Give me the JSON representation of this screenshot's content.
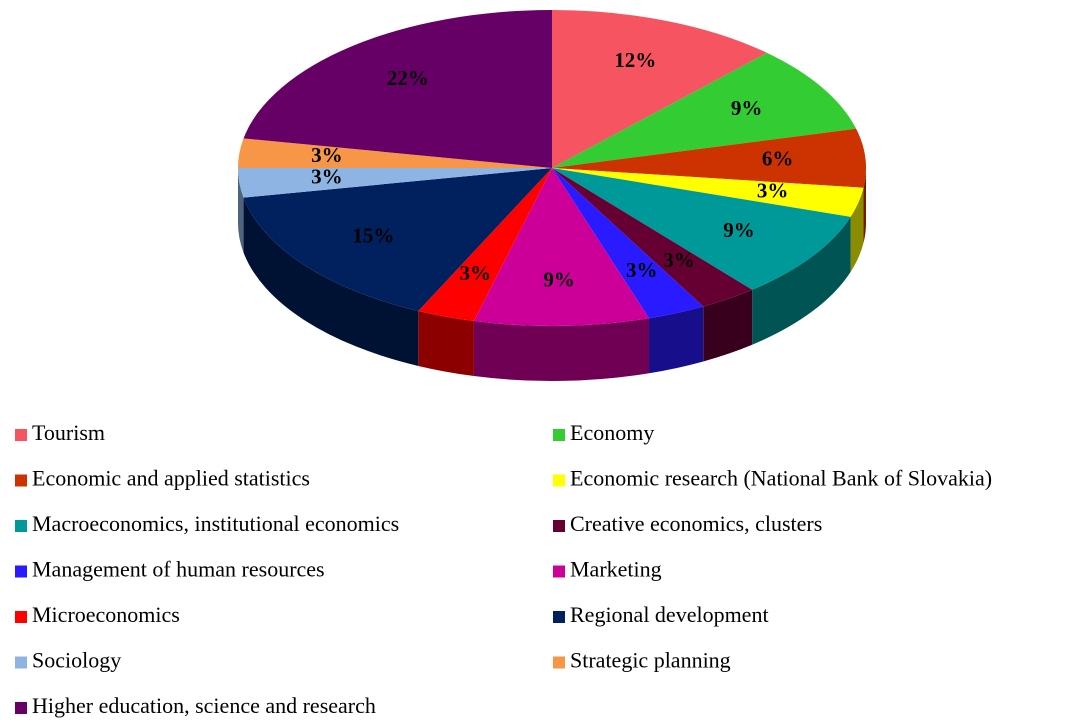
{
  "chart_data": {
    "type": "pie",
    "categories": [
      "Tourism",
      "Economy",
      "Economic and applied statistics",
      "Economic research (National Bank of Slovakia)",
      "Macroeconomics, institutional economics",
      "Creative economics, clusters",
      "Management of human resources",
      "Marketing",
      "Microeconomics",
      "Regional development",
      "Sociology",
      "Strategic planning",
      "Higher education, science and research"
    ],
    "values": [
      12,
      9,
      6,
      3,
      9,
      3,
      3,
      9,
      3,
      15,
      3,
      3,
      22
    ],
    "value_labels": [
      "12%",
      "9%",
      "6%",
      "3%",
      "9%",
      "3%",
      "3%",
      "9%",
      "3%",
      "15%",
      "3%",
      "3%",
      "22%"
    ],
    "colors": [
      "#f75462",
      "#33cc33",
      "#cc3300",
      "#ffff00",
      "#009999",
      "#660033",
      "#2a1aff",
      "#cc0099",
      "#ff0000",
      "#00205e",
      "#8db4e2",
      "#f79646",
      "#660066"
    ],
    "legend": "bottom"
  }
}
